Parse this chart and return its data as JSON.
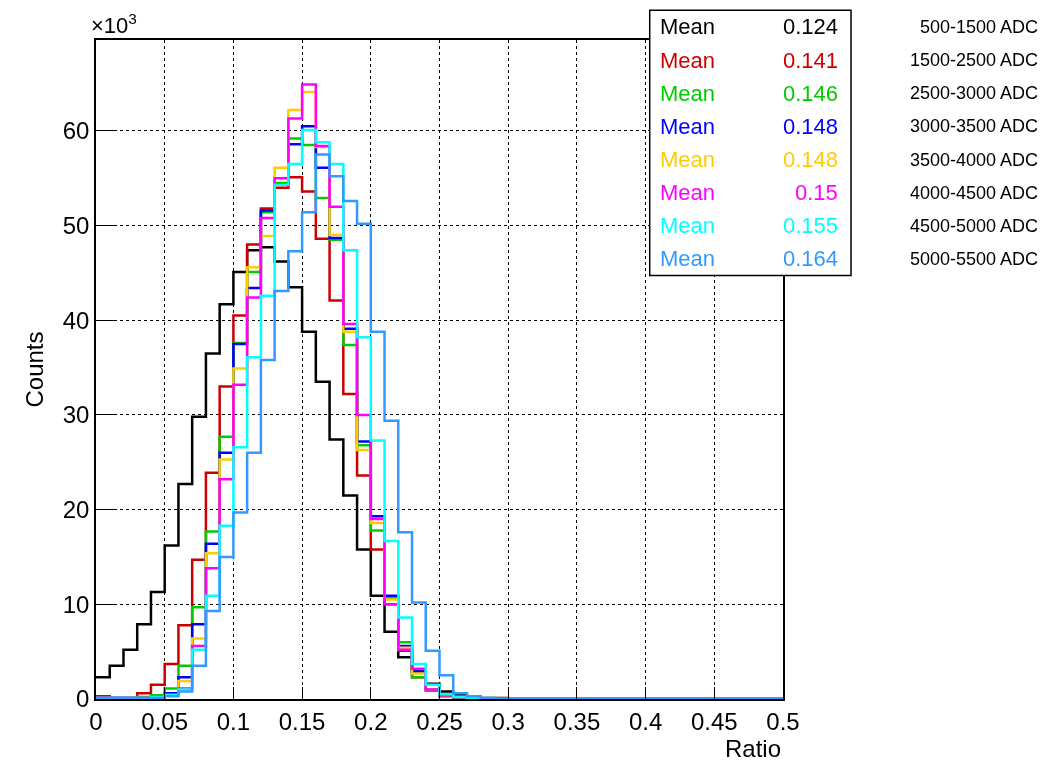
{
  "chart_data": {
    "type": "histogram",
    "xlabel": "Ratio",
    "ylabel": "Counts",
    "annotations": [
      "×10$^{3}$",
      "Mean 0.124",
      "Mean 0.141",
      "Mean 0.146",
      "Mean 0.148",
      "Mean 0.148",
      "Mean 0.15",
      "Mean 0.155",
      "Mean 0.164"
    ],
    "bins": [
      0,
      0.01,
      0.02,
      0.03,
      0.04,
      0.05,
      0.06,
      0.07,
      0.08,
      0.09,
      0.1,
      0.11,
      0.12,
      0.13,
      0.14,
      0.15,
      0.16,
      0.17,
      0.18,
      0.19,
      0.2,
      0.21,
      0.22,
      0.23,
      0.24,
      0.25,
      0.26,
      0.27,
      0.28,
      0.29,
      0.3,
      0.31,
      0.32,
      0.33,
      0.34,
      0.35,
      0.36,
      0.37,
      0.38,
      0.39,
      0.4,
      0.41,
      0.42,
      0.43,
      0.44,
      0.45,
      0.46,
      0.47,
      0.48,
      0.49,
      0.5
    ],
    "series": [
      {
        "name": "500-1500 ADC",
        "color": "#000000",
        "values": [
          2.3,
          3.5,
          5.2,
          7.9,
          11.3,
          16.2,
          22.7,
          29.8,
          36.5,
          41.7,
          45.1,
          47.4,
          47.7,
          46.2,
          43.5,
          38.8,
          33.5,
          27.4,
          21.5,
          15.8,
          10.9,
          7.1,
          4.4,
          2.9,
          1.6,
          0.8,
          0.4,
          0.2,
          0.1,
          0.1,
          0,
          0,
          0,
          0,
          0,
          0,
          0,
          0,
          0,
          0,
          0,
          0,
          0,
          0,
          0,
          0,
          0,
          0,
          0,
          0
        ]
      },
      {
        "name": "1500-2500 ADC",
        "color": "#cc0000",
        "values": [
          0.3,
          0.1,
          0.1,
          0.6,
          1.5,
          3.7,
          7.8,
          14.7,
          23.9,
          33.0,
          40.5,
          48.0,
          51.8,
          54.0,
          55.1,
          53.6,
          48.6,
          42.1,
          32.2,
          23.6,
          15.8,
          10.0,
          5.1,
          2.3,
          0.9,
          0.3,
          0.1,
          0.1,
          0,
          0,
          0,
          0,
          0,
          0,
          0,
          0,
          0,
          0,
          0,
          0,
          0,
          0,
          0,
          0,
          0,
          0,
          0,
          0,
          0,
          0
        ]
      },
      {
        "name": "2500-3000 ADC",
        "color": "#00cc00",
        "values": [
          0.1,
          0.1,
          0.1,
          0.2,
          0.4,
          1.1,
          3.5,
          9.7,
          17.7,
          27.7,
          37.6,
          45.1,
          51.4,
          54.5,
          59.2,
          58.5,
          52.9,
          48.5,
          37.4,
          26.8,
          17.8,
          10.7,
          6.0,
          2.3,
          1.0,
          0.4,
          0.2,
          0.1,
          0,
          0,
          0,
          0,
          0,
          0,
          0,
          0,
          0,
          0,
          0,
          0,
          0,
          0,
          0,
          0,
          0,
          0,
          0,
          0,
          0,
          0
        ]
      },
      {
        "name": "3000-3500 ADC",
        "color": "#0000ff",
        "values": [
          0.1,
          0.1,
          0.1,
          0.1,
          0.2,
          0.6,
          2.3,
          7.9,
          16.4,
          26.0,
          37.5,
          43.4,
          51.6,
          54.3,
          58.6,
          60.5,
          56.1,
          48.7,
          39.1,
          27.2,
          19.3,
          10.9,
          5.6,
          2.9,
          1.0,
          0.4,
          0.2,
          0.1,
          0,
          0,
          0,
          0,
          0,
          0,
          0,
          0,
          0,
          0,
          0,
          0,
          0,
          0,
          0,
          0,
          0,
          0,
          0,
          0,
          0,
          0
        ]
      },
      {
        "name": "3500-4000 ADC",
        "color": "#ffcc00",
        "values": [
          0.1,
          0.1,
          0.1,
          0.1,
          0.2,
          0.4,
          1.9,
          6.4,
          15.4,
          25.3,
          34.9,
          45.6,
          48.9,
          56.1,
          62.2,
          64.1,
          58.3,
          49.0,
          38.8,
          26.3,
          18.6,
          10.5,
          5.4,
          2.7,
          1.0,
          0.4,
          0.2,
          0.1,
          0,
          0,
          0,
          0,
          0,
          0,
          0,
          0,
          0,
          0,
          0,
          0,
          0,
          0,
          0,
          0,
          0,
          0,
          0,
          0,
          0,
          0
        ]
      },
      {
        "name": "4000-4500 ADC",
        "color": "#ff00ff",
        "values": [
          0.1,
          0.1,
          0.1,
          0.1,
          0.2,
          0.5,
          1.1,
          5.6,
          13.8,
          23.2,
          33.2,
          42.4,
          50.8,
          55.0,
          61.3,
          64.9,
          58.4,
          52.0,
          39.6,
          30.0,
          19.0,
          10.0,
          5.2,
          3.2,
          1.0,
          0.4,
          0.2,
          0.1,
          0,
          0,
          0,
          0,
          0,
          0,
          0,
          0,
          0,
          0,
          0,
          0,
          0,
          0,
          0,
          0,
          0,
          0,
          0,
          0,
          0,
          0
        ]
      },
      {
        "name": "4500-5000 ADC",
        "color": "#00ffff",
        "values": [
          0.1,
          0.1,
          0.1,
          0.1,
          0.2,
          0.4,
          1.0,
          5.2,
          10.9,
          18.3,
          26.6,
          36.1,
          42.6,
          54.3,
          56.5,
          60.1,
          58.8,
          56.5,
          47.4,
          38.2,
          27.3,
          16.7,
          8.6,
          3.7,
          1.5,
          0.5,
          0.2,
          0.1,
          0,
          0,
          0,
          0,
          0,
          0,
          0,
          0,
          0,
          0,
          0,
          0,
          0,
          0,
          0,
          0,
          0,
          0,
          0,
          0,
          0,
          0
        ]
      },
      {
        "name": "5000-5500 ADC",
        "color": "#3399ff",
        "values": [
          0.1,
          0.1,
          0.1,
          0.1,
          0.1,
          0.3,
          0.8,
          3.5,
          9.3,
          15.0,
          19.7,
          26.0,
          35.8,
          43.1,
          47.3,
          51.4,
          57.5,
          55.2,
          52.6,
          50.2,
          38.8,
          29.4,
          17.6,
          10.2,
          5.1,
          2.5,
          0.6,
          0.3,
          0.1,
          0,
          0,
          0,
          0,
          0,
          0,
          0,
          0,
          0,
          0,
          0,
          0,
          0,
          0,
          0,
          0,
          0,
          0,
          0,
          0,
          0
        ]
      }
    ],
    "xlim": [
      0,
      0.5
    ],
    "xticks": [
      0,
      0.05,
      0.1,
      0.15,
      0.2,
      0.25,
      0.3,
      0.35,
      0.4,
      0.45,
      0.5
    ],
    "ylim": [
      0,
      69.6
    ],
    "yticks": [
      0,
      10,
      20,
      30,
      40,
      50,
      60
    ],
    "grid": true,
    "legend": "top right"
  }
}
